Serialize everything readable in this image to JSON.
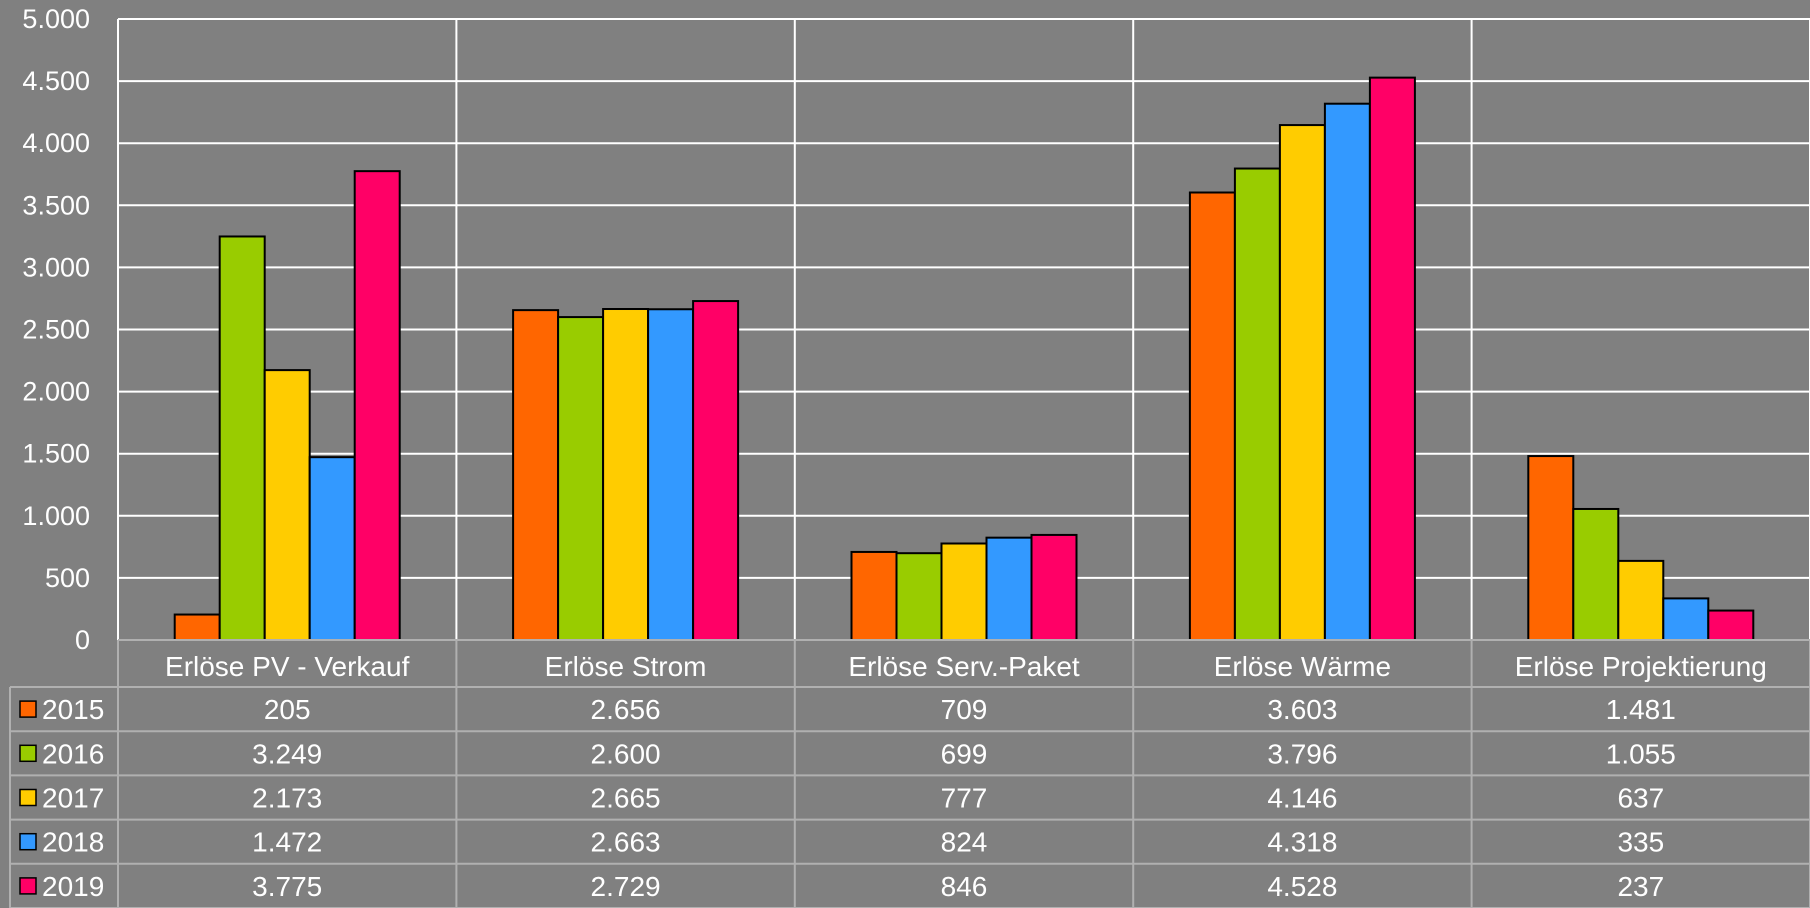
{
  "chart_data": {
    "type": "bar",
    "categories": [
      "Erlöse PV - Verkauf",
      "Erlöse Strom",
      "Erlöse Serv.-Paket",
      "Erlöse Wärme",
      "Erlöse Projektierung"
    ],
    "series": [
      {
        "name": "2015",
        "color": "#ff6600",
        "values": [
          205,
          2656,
          709,
          3603,
          1481
        ],
        "labels": [
          "205",
          "2.656",
          "709",
          "3.603",
          "1.481"
        ]
      },
      {
        "name": "2016",
        "color": "#99cc00",
        "values": [
          3249,
          2600,
          699,
          3796,
          1055
        ],
        "labels": [
          "3.249",
          "2.600",
          "699",
          "3.796",
          "1.055"
        ]
      },
      {
        "name": "2017",
        "color": "#ffcc00",
        "values": [
          2173,
          2665,
          777,
          4146,
          637
        ],
        "labels": [
          "2.173",
          "2.665",
          "777",
          "4.146",
          "637"
        ]
      },
      {
        "name": "2018",
        "color": "#3399ff",
        "values": [
          1472,
          2663,
          824,
          4318,
          335
        ],
        "labels": [
          "1.472",
          "2.663",
          "824",
          "4.318",
          "335"
        ]
      },
      {
        "name": "2019",
        "color": "#ff0066",
        "values": [
          3775,
          2729,
          846,
          4528,
          237
        ],
        "labels": [
          "3.775",
          "2.729",
          "846",
          "4.528",
          "237"
        ]
      }
    ],
    "ylim": [
      0,
      5000
    ],
    "yticks": [
      0,
      500,
      1000,
      1500,
      2000,
      2500,
      3000,
      3500,
      4000,
      4500,
      5000
    ],
    "ytick_labels": [
      "0",
      "500",
      "1.000",
      "1.500",
      "2.000",
      "2.500",
      "3.000",
      "3.500",
      "4.000",
      "4.500",
      "5.000"
    ],
    "grid": true,
    "legend": "data-table",
    "background": "#808080",
    "gridline_color": "#ffffff"
  }
}
